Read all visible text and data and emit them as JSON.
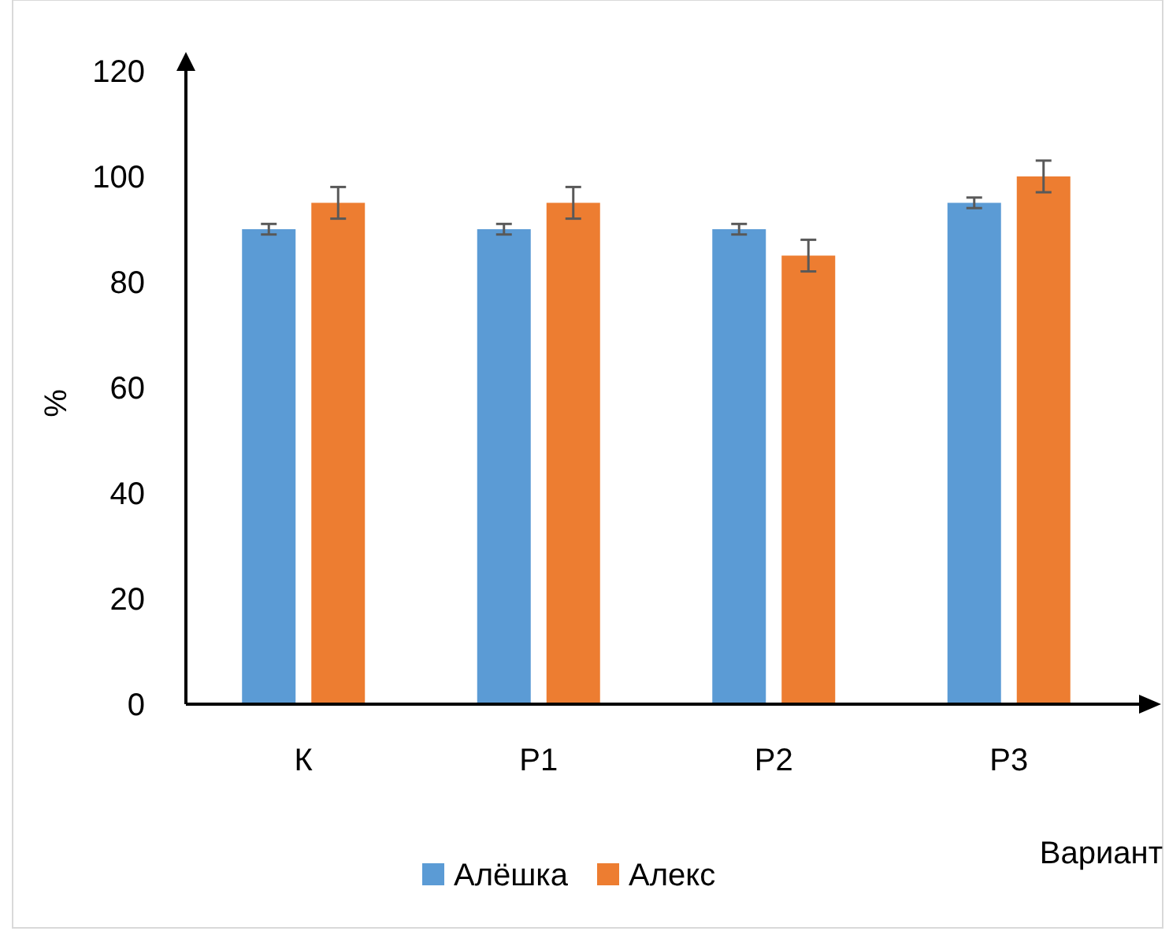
{
  "chart_data": {
    "type": "bar",
    "categories": [
      "К",
      "Р1",
      "Р2",
      "Р3"
    ],
    "series": [
      {
        "name": "Алёшка",
        "color": "#5b9bd5",
        "values": [
          90,
          90,
          90,
          95
        ],
        "errors": [
          1,
          1,
          1,
          1
        ]
      },
      {
        "name": "Алекс",
        "color": "#ed7d31",
        "values": [
          95,
          95,
          85,
          100
        ],
        "errors": [
          3,
          3,
          3,
          3
        ]
      }
    ],
    "ylabel": "%",
    "xlabel": "Вариант",
    "ylim": [
      0,
      120
    ],
    "yticks": [
      0,
      20,
      40,
      60,
      80,
      100,
      120
    ],
    "grid": false,
    "legend": "bottom"
  }
}
